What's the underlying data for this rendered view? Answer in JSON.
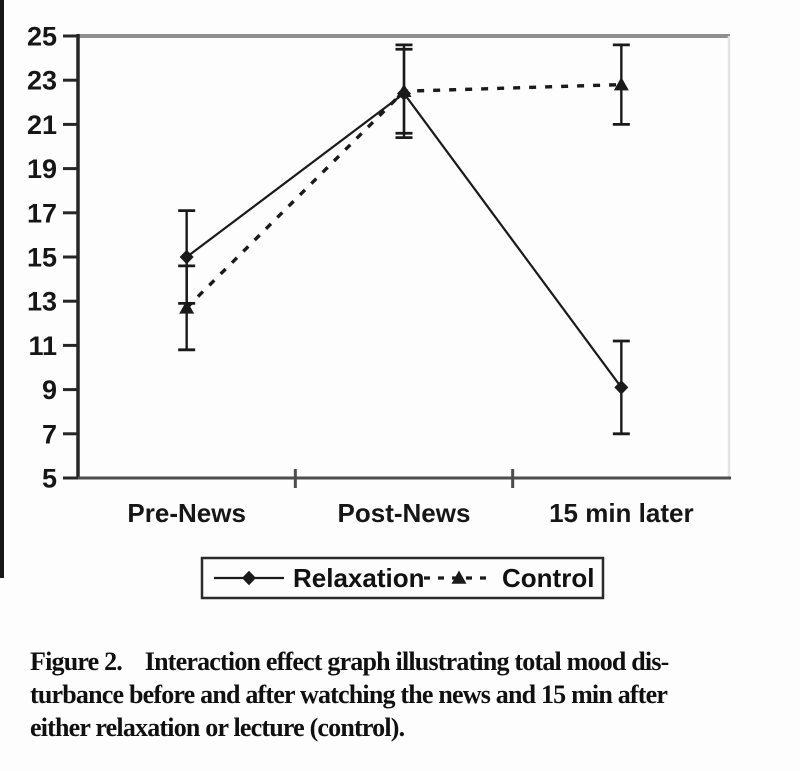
{
  "figure": {
    "caption_lines": [
      "Figure 2.    Interaction effect graph illustrating total mood dis-",
      "turbance before and after watching the news and 15 min after",
      "either relaxation or lecture (control)."
    ]
  },
  "colors": {
    "ink": "#1a1a1a",
    "axis_left": "#262626",
    "axis_bottom": "#4d4d4d",
    "frame_top": "#8f8f8f",
    "frame_right": "#e3e3e3",
    "legend_border": "#2b2b2b",
    "background": "#fdfdfd"
  },
  "chart_data": {
    "type": "line",
    "title": "",
    "xlabel": "",
    "ylabel": "",
    "categories": [
      "Pre-News",
      "Post-News",
      "15 min later"
    ],
    "series": [
      {
        "name": "Relaxation",
        "marker": "diamond",
        "line_style": "solid",
        "values": [
          15.0,
          22.4,
          9.1
        ],
        "error_low": [
          12.9,
          20.6,
          7.0
        ],
        "error_high": [
          17.1,
          24.4,
          11.2
        ]
      },
      {
        "name": "Control",
        "marker": "triangle",
        "line_style": "dashed",
        "values": [
          12.7,
          22.5,
          22.8
        ],
        "error_low": [
          10.8,
          20.4,
          21.0
        ],
        "error_high": [
          14.6,
          24.6,
          24.6
        ]
      }
    ],
    "ylim": [
      5,
      25
    ],
    "yticks": [
      5,
      7,
      9,
      11,
      13,
      15,
      17,
      19,
      21,
      23,
      25
    ],
    "grid": false,
    "error_bars": true,
    "legend_position": "bottom"
  }
}
